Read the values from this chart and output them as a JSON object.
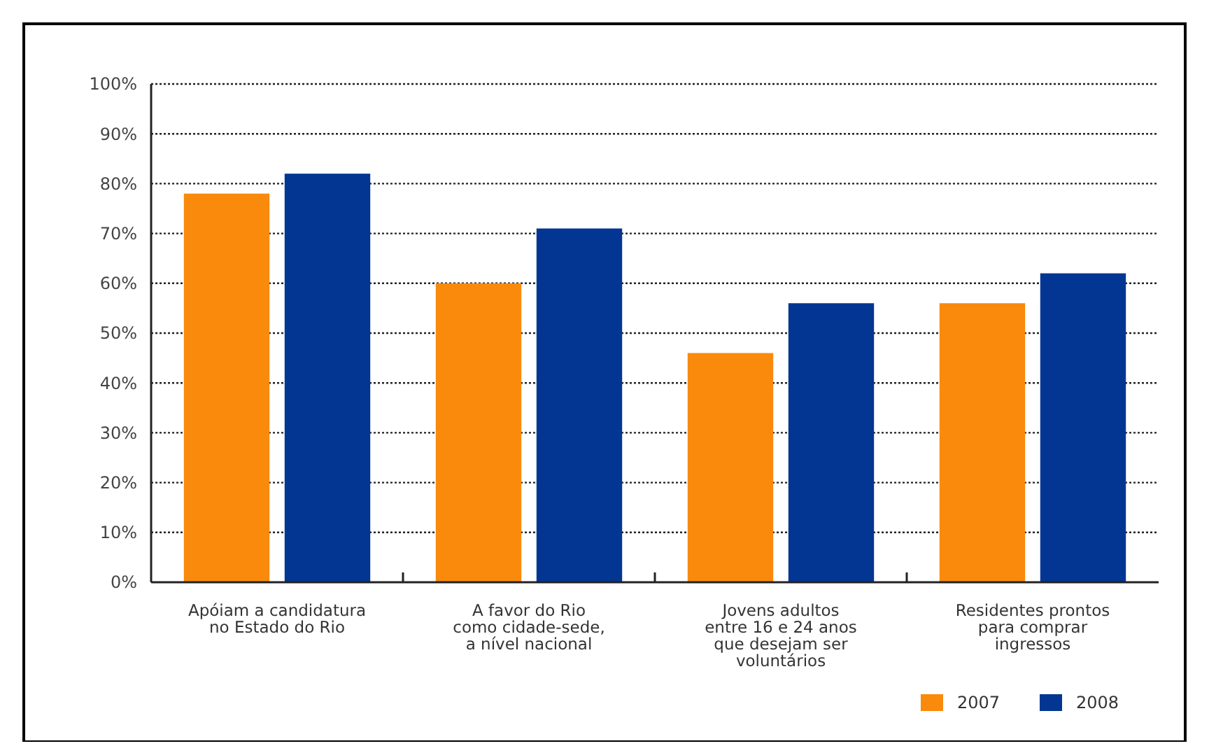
{
  "chart_data": {
    "type": "bar",
    "categories": [
      "Apóiam a candidatura\nno Estado do Rio",
      "A favor do Rio\ncomo cidade-sede,\na nível nacional",
      "Jovens adultos\nentre 16 e 24 anos\nque desejam ser\nvoluntários",
      "Residentes prontos\npara comprar\ningressos"
    ],
    "series": [
      {
        "name": "2007",
        "color": "#f98a0c",
        "values": [
          78,
          60,
          46,
          56
        ]
      },
      {
        "name": "2008",
        "color": "#033693",
        "values": [
          82,
          71,
          56,
          62
        ]
      }
    ],
    "ylim": [
      0,
      100
    ],
    "yticks": [
      {
        "value": 0,
        "label": "0%"
      },
      {
        "value": 10,
        "label": "10%"
      },
      {
        "value": 20,
        "label": "20%"
      },
      {
        "value": 30,
        "label": "30%"
      },
      {
        "value": 40,
        "label": "40%"
      },
      {
        "value": 50,
        "label": "50%"
      },
      {
        "value": 60,
        "label": "60%"
      },
      {
        "value": 70,
        "label": "70%"
      },
      {
        "value": 80,
        "label": "80%"
      },
      {
        "value": 90,
        "label": "90%"
      },
      {
        "value": 100,
        "label": "100%"
      }
    ],
    "grid": "y",
    "legend": "bottom right"
  }
}
